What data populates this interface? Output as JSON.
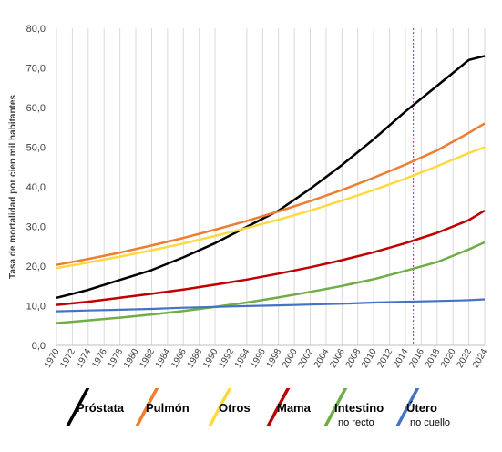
{
  "chart_data": {
    "type": "line",
    "title": "",
    "xlabel": "",
    "ylabel": "Tasa de mortalidad por cien mil habitantes",
    "ylim": [
      0,
      80
    ],
    "yticks": [
      "0,0",
      "10,0",
      "20,0",
      "30,0",
      "40,0",
      "50,0",
      "60,0",
      "70,0",
      "80,0"
    ],
    "xlim": [
      1970,
      2024
    ],
    "xticks": [
      "1970",
      "1972",
      "1974",
      "1976",
      "1978",
      "1980",
      "1982",
      "1984",
      "1986",
      "1988",
      "1990",
      "1992",
      "1994",
      "1996",
      "1998",
      "2000",
      "2002",
      "2004",
      "2006",
      "2008",
      "2010",
      "2012",
      "2014",
      "2016",
      "2018",
      "2020",
      "2022",
      "2024"
    ],
    "vertical_marker_x": 2015,
    "grid": "vertical",
    "legend_position": "bottom",
    "series": [
      {
        "name": "Próstata",
        "sub": "",
        "color": "#000000",
        "x": [
          1970,
          1974,
          1978,
          1982,
          1986,
          1990,
          1994,
          1998,
          2002,
          2006,
          2010,
          2014,
          2018,
          2022,
          2024
        ],
        "y": [
          12.0,
          14.0,
          16.5,
          19.0,
          22.2,
          25.8,
          29.9,
          34.0,
          39.5,
          45.5,
          52.0,
          59.0,
          65.5,
          72.0,
          73.0
        ]
      },
      {
        "name": "Pulmón",
        "sub": "",
        "color": "#ED7D31",
        "x": [
          1970,
          1974,
          1978,
          1982,
          1986,
          1990,
          1994,
          1998,
          2002,
          2006,
          2010,
          2014,
          2018,
          2022,
          2024
        ],
        "y": [
          20.3,
          21.8,
          23.4,
          25.2,
          27.1,
          29.2,
          31.4,
          33.8,
          36.4,
          39.2,
          42.3,
          45.6,
          49.2,
          53.6,
          56.0
        ]
      },
      {
        "name": "Otros",
        "sub": "",
        "color": "#FFD93F",
        "x": [
          1970,
          1974,
          1978,
          1982,
          1986,
          1990,
          1994,
          1998,
          2002,
          2006,
          2010,
          2014,
          2018,
          2022,
          2024
        ],
        "y": [
          19.5,
          20.9,
          22.4,
          24.0,
          25.7,
          27.6,
          29.6,
          31.7,
          34.0,
          36.5,
          39.2,
          42.1,
          45.2,
          48.5,
          50.0
        ]
      },
      {
        "name": "Mama",
        "sub": "",
        "color": "#C00000",
        "x": [
          1970,
          1974,
          1978,
          1982,
          1986,
          1990,
          1994,
          1998,
          2002,
          2006,
          2010,
          2014,
          2018,
          2022,
          2024
        ],
        "y": [
          10.2,
          11.0,
          12.0,
          13.0,
          14.1,
          15.3,
          16.6,
          18.1,
          19.7,
          21.5,
          23.5,
          25.8,
          28.4,
          31.6,
          34.0
        ]
      },
      {
        "name": "Intestino",
        "sub": "no recto",
        "color": "#70AD47",
        "x": [
          1970,
          1974,
          1978,
          1982,
          1986,
          1990,
          1994,
          1998,
          2002,
          2006,
          2010,
          2014,
          2018,
          2022,
          2024
        ],
        "y": [
          5.6,
          6.3,
          7.0,
          7.8,
          8.7,
          9.7,
          10.8,
          12.1,
          13.5,
          15.0,
          16.7,
          18.8,
          21.0,
          24.2,
          26.0
        ]
      },
      {
        "name": "Útero",
        "sub": "no cuello",
        "color": "#4472C4",
        "x": [
          1970,
          1974,
          1978,
          1982,
          1986,
          1990,
          1994,
          1998,
          2002,
          2006,
          2010,
          2014,
          2018,
          2022,
          2024
        ],
        "y": [
          8.6,
          8.8,
          9.0,
          9.2,
          9.5,
          9.7,
          9.9,
          10.1,
          10.3,
          10.5,
          10.8,
          11.0,
          11.2,
          11.4,
          11.6
        ]
      }
    ]
  }
}
